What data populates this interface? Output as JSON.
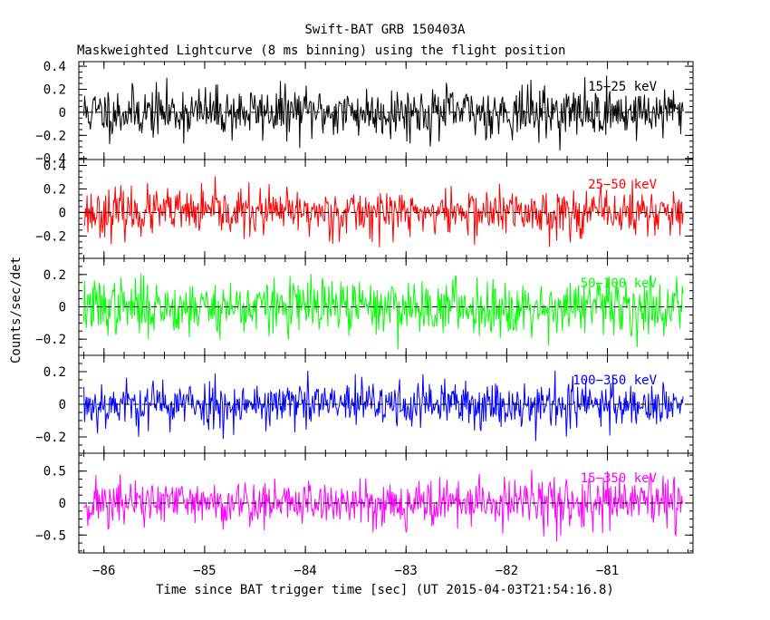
{
  "chart_data": {
    "type": "line",
    "title": "Swift-BAT GRB 150403A",
    "subtitle": "Maskweighted Lightcurve (8 ms binning) using the flight position",
    "xlabel": "Time since BAT trigger time [sec] (UT 2015-04-03T21:54:16.8)",
    "ylabel": "Counts/sec/det",
    "xlim": [
      -86.25,
      -80.15
    ],
    "x_ticks": [
      -86,
      -85,
      -84,
      -83,
      -82,
      -81
    ],
    "x_tick_labels": [
      "−86",
      "−85",
      "−84",
      "−83",
      "−82",
      "−81"
    ],
    "x_start": -86.2,
    "x_end": -80.24,
    "bin_width": 0.008,
    "grid": false,
    "zero_line": "dashed",
    "panels": [
      {
        "series_name": "15−25 keV",
        "color": "#000000",
        "ylim": [
          -0.41,
          0.44
        ],
        "y_ticks": [
          -0.4,
          -0.2,
          0,
          0.2,
          0.4
        ],
        "y_tick_labels": [
          "−0.4",
          "−0.2",
          "0",
          "0.2",
          "0.4"
        ],
        "noise_std": 0.11,
        "seed": 11
      },
      {
        "series_name": "25−50 keV",
        "color": "#ff0000",
        "ylim": [
          -0.39,
          0.45
        ],
        "y_ticks": [
          -0.2,
          0,
          0.2,
          0.4
        ],
        "y_tick_labels": [
          "−0.2",
          "0",
          "0.2",
          "0.4"
        ],
        "noise_std": 0.1,
        "seed": 23
      },
      {
        "series_name": "50−100 keV",
        "color": "#00ff00",
        "ylim": [
          -0.3,
          0.3
        ],
        "y_ticks": [
          -0.2,
          0,
          0.2
        ],
        "y_tick_labels": [
          "−0.2",
          "0",
          "0.2"
        ],
        "noise_std": 0.085,
        "seed": 37
      },
      {
        "series_name": "100−350 keV",
        "color": "#0000ff",
        "ylim": [
          -0.3,
          0.3
        ],
        "y_ticks": [
          -0.2,
          0,
          0.2
        ],
        "y_tick_labels": [
          "−0.2",
          "0",
          "0.2"
        ],
        "noise_std": 0.075,
        "seed": 53
      },
      {
        "series_name": "15−350 keV",
        "color": "#ff00ff",
        "ylim": [
          -0.78,
          0.78
        ],
        "y_ticks": [
          -0.5,
          0,
          0.5
        ],
        "y_tick_labels": [
          "−0.5",
          "0",
          "0.5"
        ],
        "noise_std": 0.19,
        "seed": 71
      }
    ]
  }
}
